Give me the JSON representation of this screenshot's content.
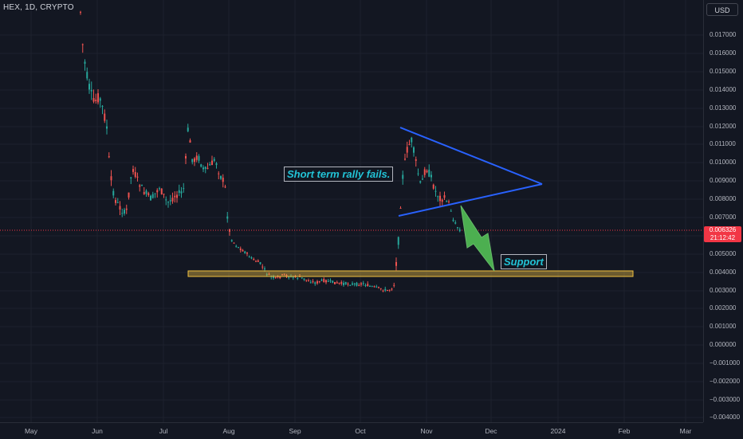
{
  "symbol": {
    "title": "HEX, 1D, CRYPTO"
  },
  "currency_button": "USD",
  "colors": {
    "up": "#26a69a",
    "down": "#ef5350",
    "line": "#2962ff",
    "support_fill": "#f0c04066",
    "support_border": "#f0c040",
    "arrow": "#4caf50",
    "annotation_text": "#22c3d6",
    "last_price": "#f23645"
  },
  "price_axis": {
    "labels": [
      "0.017000",
      "0.016000",
      "0.015000",
      "0.014000",
      "0.013000",
      "0.012000",
      "0.011000",
      "0.010000",
      "0.009000",
      "0.008000",
      "0.007000",
      "0.006000",
      "0.005000",
      "0.004000",
      "0.003000",
      "0.002000",
      "0.001000",
      "0.000000",
      "−0.001000",
      "−0.002000",
      "−0.003000",
      "−0.004000"
    ]
  },
  "time_axis": {
    "labels": [
      "May",
      "Jun",
      "Jul",
      "Aug",
      "Sep",
      "Oct",
      "Nov",
      "Dec",
      "2024",
      "Feb",
      "Mar"
    ]
  },
  "last_price": {
    "value": "0.006326",
    "countdown": "21:12:42"
  },
  "annotations": {
    "rally_text": "Short term rally fails.",
    "support_text": "Support"
  },
  "chart_data": {
    "type": "candlestick",
    "y_range": [
      -0.004,
      0.0185
    ],
    "support_zone": [
      0.00365,
      0.00395
    ],
    "triangle": {
      "apex_price": 0.0088,
      "upper_start_price": 0.0121,
      "lower_start_price": 0.0071
    }
  }
}
